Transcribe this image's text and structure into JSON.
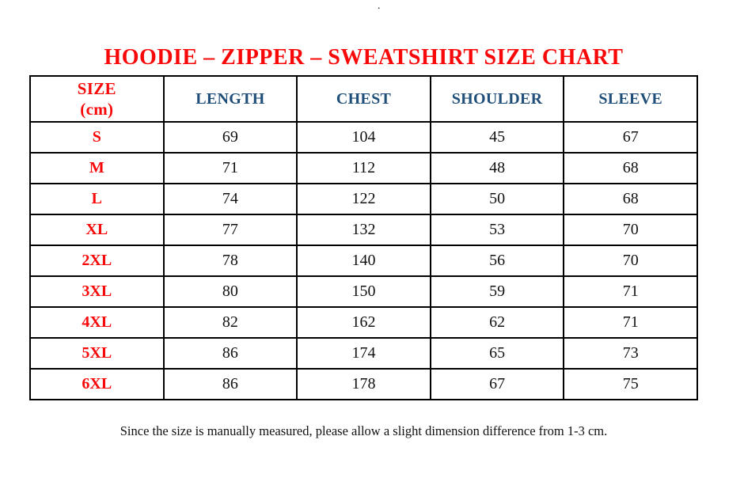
{
  "page": {
    "top_mark": ".",
    "footnote": "Since the size is manually measured, please allow a slight dimension difference from 1-3 cm."
  },
  "colors": {
    "title_red": "#f80808",
    "header_navy": "#1f4e79",
    "text_black": "#111111",
    "table_border": "#000000",
    "background": "#ffffff"
  },
  "chart_data": {
    "type": "table",
    "title": "HOODIE – ZIPPER – SWEATSHIRT SIZE CHART",
    "columns": [
      "SIZE\n(cm)",
      "LENGTH",
      "CHEST",
      "SHOULDER",
      "SLEEVE"
    ],
    "rows": [
      {
        "size": "S",
        "values": [
          69,
          104,
          45,
          67
        ]
      },
      {
        "size": "M",
        "values": [
          71,
          112,
          48,
          68
        ]
      },
      {
        "size": "L",
        "values": [
          74,
          122,
          50,
          68
        ]
      },
      {
        "size": "XL",
        "values": [
          77,
          132,
          53,
          70
        ]
      },
      {
        "size": "2XL",
        "values": [
          78,
          140,
          56,
          70
        ]
      },
      {
        "size": "3XL",
        "values": [
          80,
          150,
          59,
          71
        ]
      },
      {
        "size": "4XL",
        "values": [
          82,
          162,
          62,
          71
        ]
      },
      {
        "size": "5XL",
        "values": [
          86,
          174,
          65,
          73
        ]
      },
      {
        "size": "6XL",
        "values": [
          86,
          178,
          67,
          75
        ]
      }
    ],
    "footnote": "Since the size is manually measured, please allow a slight dimension difference from 1-3 cm."
  }
}
